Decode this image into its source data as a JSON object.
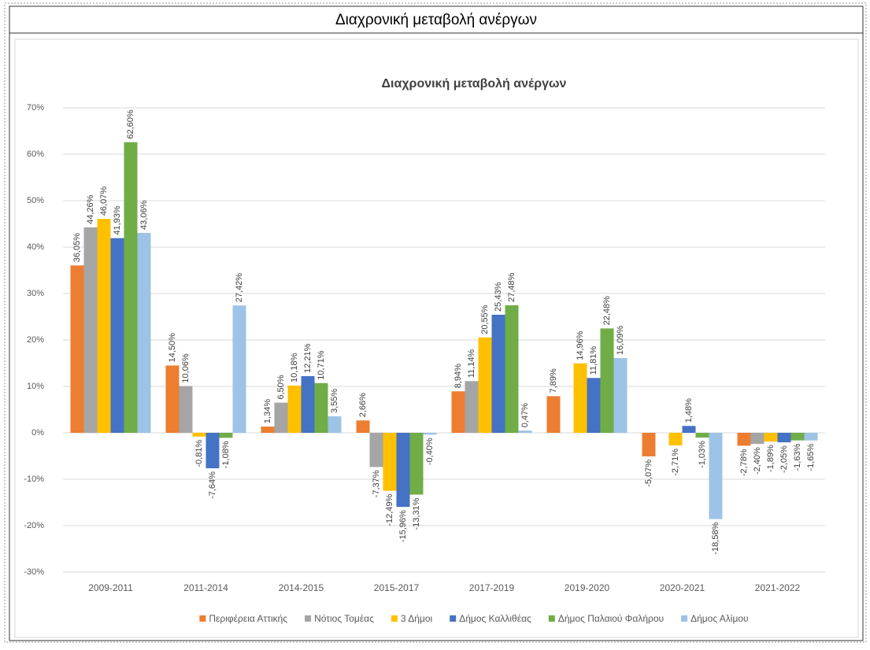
{
  "header": {
    "title": "Διαχρονική μεταβολή ανέργων"
  },
  "chart_data": {
    "type": "bar",
    "title": "Διαχρονική μεταβολή ανέργων",
    "categories": [
      "2009-2011",
      "2011-2014",
      "2014-2015",
      "2015-2017",
      "2017-2019",
      "2019-2020",
      "2020-2021",
      "2021-2022"
    ],
    "series": [
      {
        "name": "Περιφέρεια Αττικής",
        "color": "#ED7D31",
        "values": [
          36.05,
          14.5,
          1.34,
          2.66,
          8.94,
          7.89,
          -5.07,
          -2.78
        ],
        "value_labels": [
          "36,05%",
          "14,50%",
          "1,34%",
          "2,66%",
          "8,94%",
          "7,89%",
          "-5,07%",
          "-2,78%"
        ]
      },
      {
        "name": "Νότιος Τομέας",
        "color": "#A5A5A5",
        "values": [
          44.26,
          10.06,
          6.5,
          -7.37,
          11.14,
          null,
          null,
          -2.4
        ],
        "value_labels": [
          "44,26%",
          "10,06%",
          "6,50%",
          "-7,37%",
          "11,14%",
          null,
          null,
          "-2,40%"
        ]
      },
      {
        "name": "3 Δήμοι",
        "color": "#FFC000",
        "values": [
          46.07,
          -0.81,
          10.18,
          -12.49,
          20.55,
          14.96,
          -2.71,
          -1.89
        ],
        "value_labels": [
          "46,07%",
          "-0,81%",
          "10,18%",
          "-12,49%",
          "20,55%",
          "14,96%",
          "-2,71%",
          "-1,89%"
        ]
      },
      {
        "name": "Δήμος Καλλιθέας",
        "color": "#4472C4",
        "values": [
          41.93,
          -7.64,
          12.21,
          -15.96,
          25.43,
          11.81,
          1.48,
          -2.05
        ],
        "value_labels": [
          "41,93%",
          "-7,64%",
          "12,21%",
          "-15,96%",
          "25,43%",
          "11,81%",
          "1,48%",
          "-2,05%"
        ]
      },
      {
        "name": "Δήμος Παλαιού Φαλήρου",
        "color": "#70AD47",
        "values": [
          62.6,
          -1.08,
          10.71,
          -13.31,
          27.48,
          22.48,
          -1.03,
          -1.63
        ],
        "value_labels": [
          "62,60%",
          "-1,08%",
          "10,71%",
          "-13,31%",
          "27,48%",
          "22,48%",
          "-1,03%",
          "-1,63%"
        ]
      },
      {
        "name": "Δήμος Αλίμου",
        "color": "#9DC3E6",
        "values": [
          43.06,
          27.42,
          3.55,
          -0.4,
          0.47,
          16.09,
          -18.58,
          -1.65
        ],
        "value_labels": [
          "43,06%",
          "27,42%",
          "3,55%",
          "-0,40%",
          "0,47%",
          "16,09%",
          "-18,58%",
          "-1,65%"
        ]
      }
    ],
    "ylim": [
      -30,
      70
    ],
    "yticks": [
      {
        "value": -30,
        "label": "-30%"
      },
      {
        "value": -20,
        "label": "-20%"
      },
      {
        "value": -10,
        "label": "-10%"
      },
      {
        "value": 0,
        "label": "0%"
      },
      {
        "value": 10,
        "label": "10%"
      },
      {
        "value": 20,
        "label": "20%"
      },
      {
        "value": 30,
        "label": "30%"
      },
      {
        "value": 40,
        "label": "40%"
      },
      {
        "value": 50,
        "label": "50%"
      },
      {
        "value": 60,
        "label": "60%"
      },
      {
        "value": 70,
        "label": "70%"
      }
    ],
    "grid": true,
    "legend": "bottom"
  }
}
